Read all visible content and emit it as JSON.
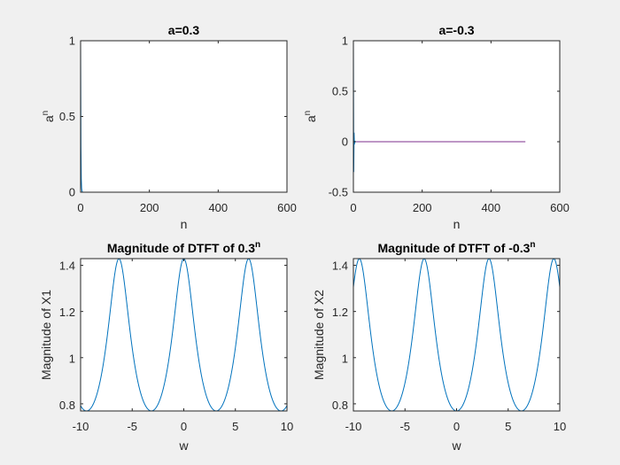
{
  "figure_background": "#f0f0f0",
  "axes_background": "#ffffff",
  "chart_data": [
    {
      "id": "p1",
      "type": "line",
      "title": "a=0.3",
      "xlabel": "n",
      "ylabel_base": "a",
      "ylabel_sup": "n",
      "xlim": [
        0,
        600
      ],
      "ylim": [
        0,
        1
      ],
      "xticks": [
        "0",
        "200",
        "400",
        "600"
      ],
      "yticks": [
        "0",
        "0.5",
        "1"
      ],
      "grid": false,
      "series": [
        {
          "color": "#0072bd",
          "x": [
            0,
            1,
            2,
            3,
            4,
            5,
            6,
            7,
            8
          ],
          "y": [
            1,
            0.3,
            0.09,
            0.027,
            0.0081,
            0.00243,
            0.000729,
            0.000219,
            6.56e-05
          ]
        },
        {
          "color": "#7e2f8e",
          "x": [
            8,
            500
          ],
          "y": [
            0,
            0
          ]
        }
      ]
    },
    {
      "id": "p2",
      "type": "line",
      "title": "a=-0.3",
      "xlabel": "n",
      "ylabel_base": "a",
      "ylabel_sup": "n",
      "xlim": [
        0,
        600
      ],
      "ylim": [
        -0.5,
        1
      ],
      "xticks": [
        "0",
        "200",
        "400",
        "600"
      ],
      "yticks": [
        "-0.5",
        "0",
        "0.5",
        "1"
      ],
      "grid": false,
      "series": [
        {
          "color": "#0072bd",
          "x": [
            0,
            1,
            2,
            3,
            4,
            5,
            6,
            7,
            8
          ],
          "y": [
            1,
            -0.3,
            0.09,
            -0.027,
            0.0081,
            -0.00243,
            0.000729,
            -0.000219,
            6.56e-05
          ]
        },
        {
          "color": "#7e2f8e",
          "x": [
            8,
            500
          ],
          "y": [
            0,
            0
          ]
        }
      ]
    },
    {
      "id": "p3",
      "type": "line",
      "title_base": "Magnitude of DTFT of 0.3",
      "title_sup": "n",
      "xlabel": "w",
      "ylabel": "Magnitude of X1",
      "xlim": [
        -10,
        10
      ],
      "ylim": [
        0.769,
        1.429
      ],
      "xticks": [
        "-10",
        "-5",
        "0",
        "5",
        "10"
      ],
      "yticks": [
        "0.8",
        "1",
        "1.2",
        "1.4"
      ],
      "grid": false,
      "function": "abs(1/(1-0.3*exp(-jw)))",
      "a": 0.3,
      "samples": 801,
      "series": [
        {
          "color": "#0072bd"
        }
      ]
    },
    {
      "id": "p4",
      "type": "line",
      "title_base": "Magnitude of DTFT of -0.3",
      "title_sup": "n",
      "xlabel": "w",
      "ylabel": "Magnitude of X2",
      "xlim": [
        -10,
        10
      ],
      "ylim": [
        0.769,
        1.429
      ],
      "xticks": [
        "-10",
        "-5",
        "0",
        "5",
        "10"
      ],
      "yticks": [
        "0.8",
        "1",
        "1.2",
        "1.4"
      ],
      "grid": false,
      "function": "abs(1/(1+0.3*exp(-jw)))",
      "a": -0.3,
      "samples": 801,
      "series": [
        {
          "color": "#0072bd"
        }
      ]
    }
  ]
}
